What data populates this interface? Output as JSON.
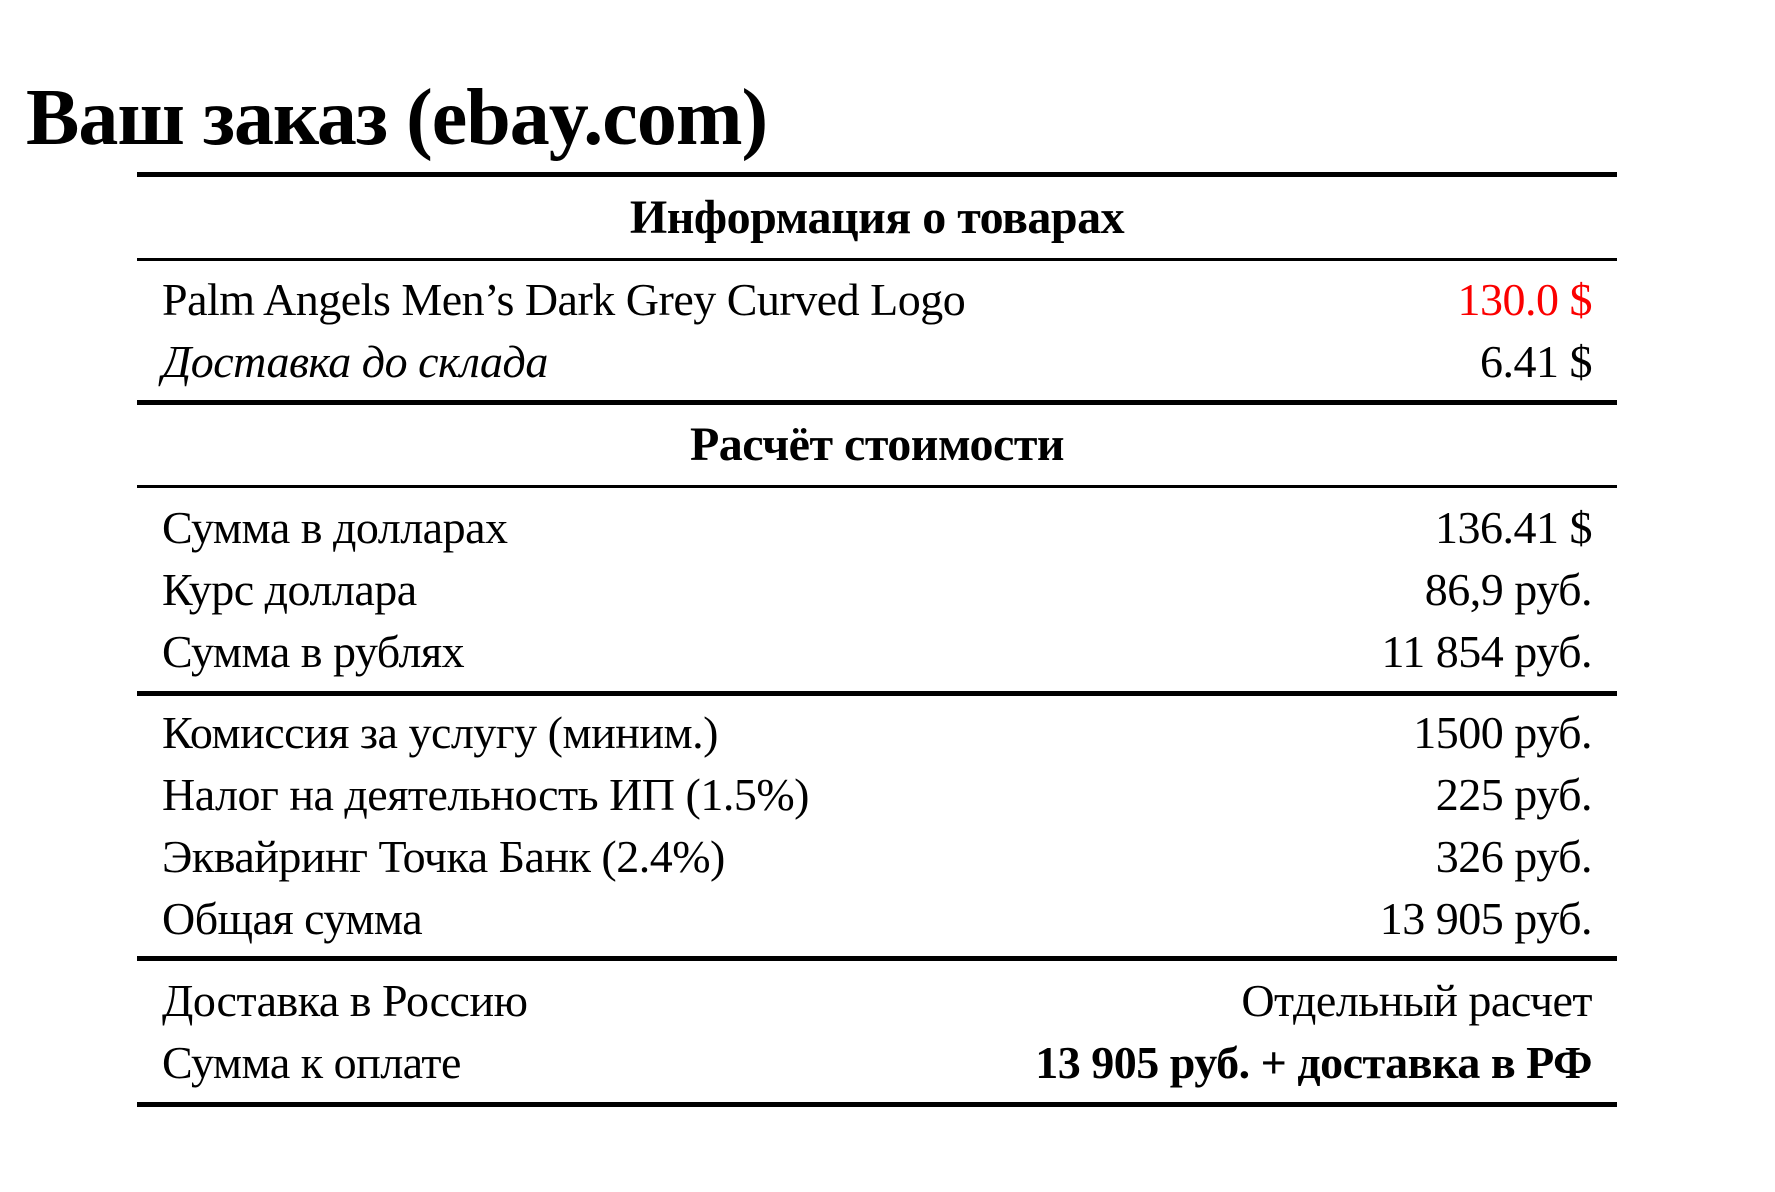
{
  "page": {
    "title": "Ваш заказ (ebay.com)"
  },
  "colors": {
    "text": "#000000",
    "highlight_red": "#fb0000",
    "rule": "#000000",
    "background": "#ffffff"
  },
  "table": {
    "products_header": "Информация о товарах",
    "items": [
      {
        "label": "Palm Angels Men’s Dark Grey Curved Logo",
        "value": "130.0 $"
      },
      {
        "label": "Доставка до склада",
        "value": "6.41 $"
      }
    ],
    "calculation_header": "Расчёт стоимости",
    "costs": [
      {
        "label": "Сумма в долларах",
        "value": "136.41 $"
      },
      {
        "label": "Курс доллара",
        "value": "86,9 руб."
      },
      {
        "label": "Сумма в рублях",
        "value": "11 854 руб."
      }
    ],
    "fees": [
      {
        "label": "Комиссия за услугу (миним.)",
        "value": "1500 руб."
      },
      {
        "label": "Налог на деятельность ИП (1.5%)",
        "value": "225 руб."
      },
      {
        "label": "Эквайринг Точка Банк (2.4%)",
        "value": "326 руб."
      },
      {
        "label": "Общая сумма",
        "value": "13 905 руб."
      }
    ],
    "totals": [
      {
        "label": "Доставка в Россию",
        "value": "Отдельный расчет"
      },
      {
        "label": "Сумма к оплате",
        "value": "13 905 руб. + доставка в РФ"
      }
    ]
  }
}
